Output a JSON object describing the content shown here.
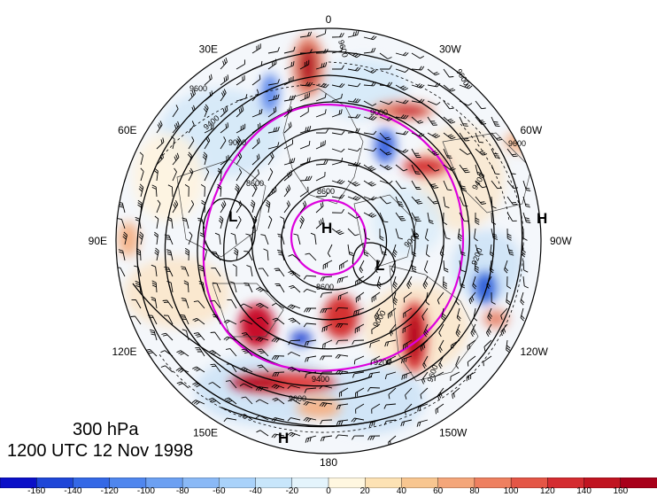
{
  "map": {
    "level": "300 hPa",
    "datetime": "1200 UTC 12 Nov 1998",
    "longitude_labels": [
      {
        "text": "0",
        "lon": 0
      },
      {
        "text": "30W",
        "lon": -30
      },
      {
        "text": "60W",
        "lon": -60
      },
      {
        "text": "90W",
        "lon": -90
      },
      {
        "text": "120W",
        "lon": -120
      },
      {
        "text": "150W",
        "lon": -150
      },
      {
        "text": "180",
        "lon": 180
      },
      {
        "text": "150E",
        "lon": 150
      },
      {
        "text": "120E",
        "lon": 120
      },
      {
        "text": "90E",
        "lon": 90
      },
      {
        "text": "60E",
        "lon": 60
      },
      {
        "text": "30E",
        "lon": 30
      }
    ],
    "pressure_centers": [
      {
        "type": "H",
        "label": "H"
      },
      {
        "type": "L",
        "label": "L"
      },
      {
        "type": "L",
        "label": "L"
      },
      {
        "type": "H",
        "label": "H"
      },
      {
        "type": "H",
        "label": "H"
      }
    ],
    "contour_labels": [
      "9600",
      "9600",
      "9400",
      "9600",
      "9000",
      "8600",
      "9000",
      "9600",
      "9200",
      "9400",
      "9600",
      "9400",
      "8600",
      "9000",
      "9200",
      "9600",
      "8600",
      "9000"
    ],
    "colors": {
      "outline": "#000000",
      "ring": "#dd00dd",
      "positive_strong": "#b4001a",
      "negative_strong": "#0a2bc8"
    }
  },
  "colorbar": {
    "labels": [
      "-160",
      "-140",
      "-120",
      "-100",
      "-80",
      "-60",
      "-40",
      "-20",
      "0",
      "20",
      "40",
      "60",
      "80",
      "100",
      "120",
      "140",
      "160"
    ],
    "colors": [
      "#0a10c8",
      "#1e46d8",
      "#3468e6",
      "#4f86ee",
      "#6ca0f2",
      "#8ab9f6",
      "#a9d2fa",
      "#c8e6fb",
      "#e4f4fc",
      "#fff7e0",
      "#fde2b4",
      "#f8c690",
      "#f4a67a",
      "#ee8060",
      "#e45646",
      "#d42c30",
      "#c01420",
      "#a8001a"
    ]
  }
}
